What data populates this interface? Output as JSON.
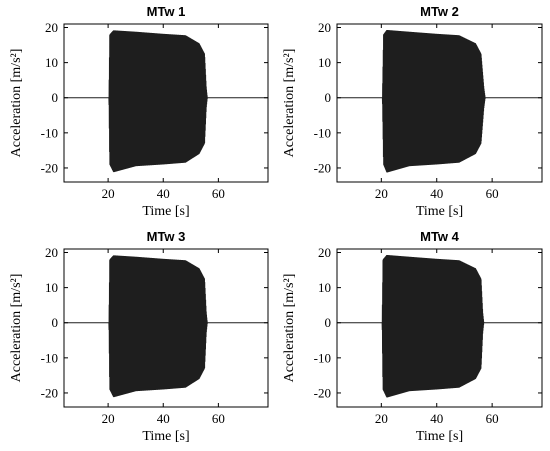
{
  "chart_data": [
    {
      "type": "line",
      "title": "MTw 1",
      "xlabel": "Time [s]",
      "ylabel": "Acceleration [m/s²]",
      "xlim": [
        4,
        78
      ],
      "ylim": [
        -24,
        21
      ],
      "xticks": [
        20,
        40,
        60
      ],
      "yticks": [
        -20,
        -10,
        0,
        10,
        20
      ],
      "grid": false,
      "series": [
        {
          "color": "#1e1e1e",
          "envelope_time": [
            4,
            20.3,
            20.6,
            22,
            30,
            40,
            48,
            53,
            55,
            55.6,
            56,
            78
          ],
          "upper": [
            0,
            0,
            18,
            19.2,
            18.8,
            18.2,
            17.8,
            15.5,
            12.5,
            3,
            0,
            0
          ],
          "lower": [
            0,
            0,
            -19,
            -21.2,
            -19.5,
            -19,
            -18.5,
            -16,
            -13,
            -3,
            0,
            0
          ]
        }
      ]
    },
    {
      "type": "line",
      "title": "MTw 2",
      "xlabel": "Time [s]",
      "ylabel": "Acceleration [m/s²]",
      "xlim": [
        4,
        78
      ],
      "ylim": [
        -24,
        21
      ],
      "xticks": [
        20,
        40,
        60
      ],
      "yticks": [
        -20,
        -10,
        0,
        10,
        20
      ],
      "grid": false,
      "series": [
        {
          "color": "#1e1e1e",
          "envelope_time": [
            4,
            20.4,
            20.8,
            22,
            30,
            40,
            48,
            54,
            56,
            57,
            57.5,
            78
          ],
          "upper": [
            0,
            0,
            18,
            19.3,
            18.8,
            18.2,
            17.8,
            15.5,
            12.5,
            3,
            0,
            0
          ],
          "lower": [
            0,
            0,
            -19,
            -21.3,
            -19.5,
            -19,
            -18.5,
            -16,
            -13,
            -3,
            0,
            0
          ]
        }
      ]
    },
    {
      "type": "line",
      "title": "MTw 3",
      "xlabel": "Time [s]",
      "ylabel": "Acceleration [m/s²]",
      "xlim": [
        4,
        78
      ],
      "ylim": [
        -24,
        21
      ],
      "xticks": [
        20,
        40,
        60
      ],
      "yticks": [
        -20,
        -10,
        0,
        10,
        20
      ],
      "grid": false,
      "series": [
        {
          "color": "#1e1e1e",
          "envelope_time": [
            4,
            20.3,
            20.6,
            22,
            30,
            40,
            48,
            53,
            55,
            55.6,
            56,
            78
          ],
          "upper": [
            0,
            0,
            18,
            19.2,
            18.8,
            18.2,
            17.8,
            15.5,
            12.5,
            3,
            0,
            0
          ],
          "lower": [
            0,
            0,
            -19,
            -21.2,
            -19.5,
            -19,
            -18.5,
            -16,
            -13,
            -3,
            0,
            0
          ]
        }
      ]
    },
    {
      "type": "line",
      "title": "MTw 4",
      "xlabel": "Time [s]",
      "ylabel": "Acceleration [m/s²]",
      "xlim": [
        4,
        78
      ],
      "ylim": [
        -24,
        21
      ],
      "xticks": [
        20,
        40,
        60
      ],
      "yticks": [
        -20,
        -10,
        0,
        10,
        20
      ],
      "grid": false,
      "series": [
        {
          "color": "#1e1e1e",
          "envelope_time": [
            4,
            20.3,
            20.6,
            22,
            30,
            40,
            48,
            54,
            56,
            56.6,
            57,
            78
          ],
          "upper": [
            0,
            0,
            18,
            19.3,
            18.8,
            18.2,
            17.8,
            15.5,
            12.5,
            3,
            0,
            0
          ],
          "lower": [
            0,
            0,
            -19,
            -21.3,
            -19.5,
            -19,
            -18.5,
            -16,
            -13,
            -3,
            0,
            0
          ]
        }
      ]
    }
  ]
}
